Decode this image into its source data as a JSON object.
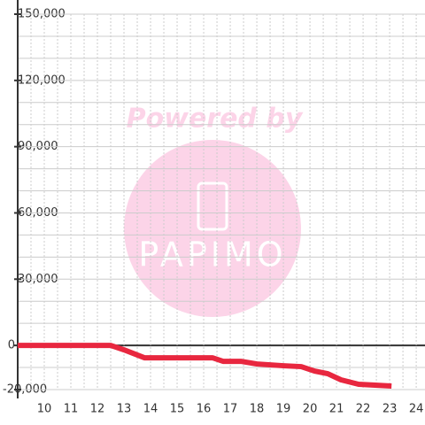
{
  "chart_data": {
    "type": "line",
    "watermark": {
      "top": "Powered by",
      "logo": "PAPIMO"
    },
    "x": [
      9,
      12.5,
      13,
      13.77,
      16.33,
      16.73,
      17.4,
      18,
      18.5,
      19,
      19.67,
      20.17,
      20.67,
      21.17,
      21.83,
      23.07
    ],
    "series": [
      {
        "color": "#e8273f",
        "values": [
          0,
          0,
          -2000,
          -5600,
          -5600,
          -7200,
          -7200,
          -8400,
          -8800,
          -9200,
          -9600,
          -11600,
          -12800,
          -15600,
          -17600,
          -18400
        ]
      }
    ],
    "xlim": [
      9,
      24.33
    ],
    "ylim": [
      -20000,
      150000
    ],
    "xticks": [
      10,
      11,
      12,
      13,
      14,
      15,
      16,
      17,
      18,
      19,
      20,
      21,
      22,
      23,
      24
    ],
    "yticks": [
      {
        "value": -20000,
        "label": "-20,000"
      },
      0,
      {
        "value": 30000,
        "label": "30,000"
      },
      {
        "value": 60000,
        "label": "60,000"
      },
      {
        "value": 90000,
        "label": "90,000"
      },
      {
        "value": 120000,
        "label": "120,000"
      },
      {
        "value": 150000,
        "label": "150,000"
      }
    ],
    "ygrid": [
      -10000,
      10000,
      20000,
      40000,
      50000,
      70000,
      80000,
      100000,
      110000,
      130000,
      140000
    ],
    "xgrid": [
      9.5,
      10.5,
      11.5,
      12.5,
      13.5,
      14.5,
      15.5,
      16.5,
      17.5,
      18.5,
      19.5,
      20.5,
      21.5,
      22.5,
      23.5
    ],
    "grid": true
  }
}
